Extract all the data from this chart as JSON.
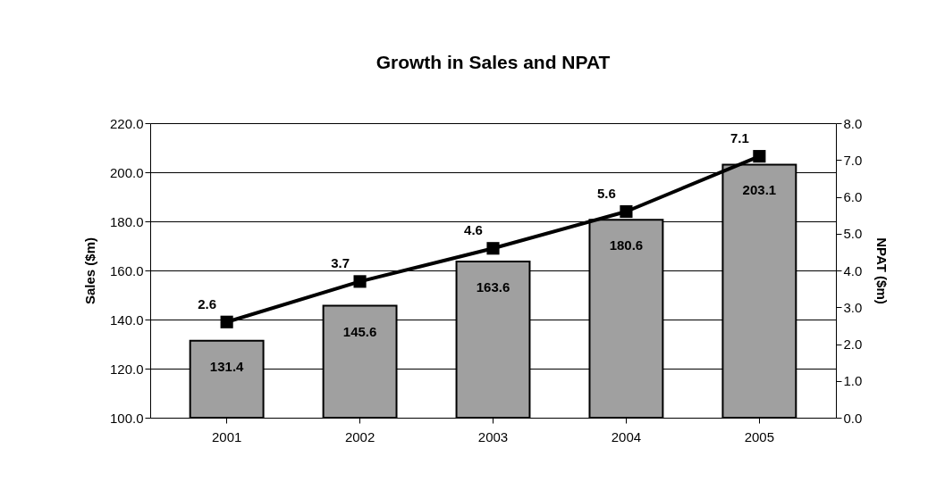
{
  "chart_data": {
    "type": "bar",
    "title": "Growth in Sales and NPAT",
    "ylabel": "Sales ($m)",
    "y2label": "NPAT ($m)",
    "categories": [
      "2001",
      "2002",
      "2003",
      "2004",
      "2005"
    ],
    "series": [
      {
        "color": "#a0a0a0",
        "values": [
          131.4,
          145.6,
          163.6,
          180.6,
          203.1
        ]
      },
      {
        "type": "line",
        "axis": "y2",
        "color": "#000000",
        "values": [
          2.6,
          3.7,
          4.6,
          5.6,
          7.1
        ]
      }
    ],
    "ylim": [
      100,
      220
    ],
    "yticks": [
      {
        "value": 100,
        "label": "100.0"
      },
      {
        "value": 120,
        "label": "120.0"
      },
      {
        "value": 140,
        "label": "140.0"
      },
      {
        "value": 160,
        "label": "160.0"
      },
      {
        "value": 180,
        "label": "180.0"
      },
      {
        "value": 200,
        "label": "200.0"
      },
      {
        "value": 220,
        "label": "220.0"
      }
    ],
    "y2lim": [
      0,
      8
    ],
    "y2ticks": [
      {
        "value": 0,
        "label": "0.0"
      },
      {
        "value": 1,
        "label": "1.0"
      },
      {
        "value": 2,
        "label": "2.0"
      },
      {
        "value": 3,
        "label": "3.0"
      },
      {
        "value": 4,
        "label": "4.0"
      },
      {
        "value": 5,
        "label": "5.0"
      },
      {
        "value": 6,
        "label": "6.0"
      },
      {
        "value": 7,
        "label": "7.0"
      },
      {
        "value": 8,
        "label": "8.0"
      }
    ],
    "grid": "y",
    "marker": "square",
    "line_style": "solid",
    "data_labels": true
  }
}
